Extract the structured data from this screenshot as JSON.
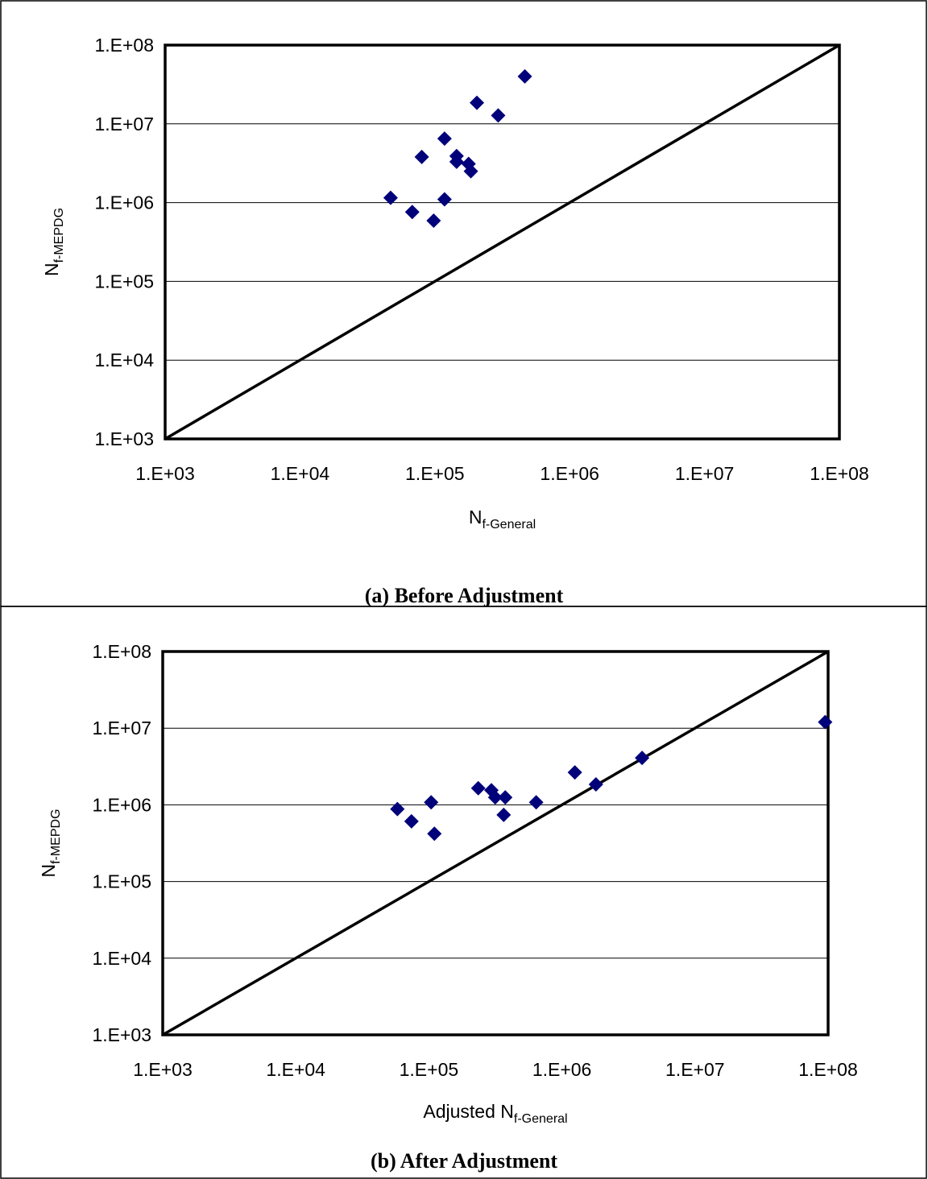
{
  "panels": [
    {
      "caption": "(a) Before Adjustment",
      "xlabel_pre": "",
      "xlabel_main": "N",
      "xlabel_sub": "f-General",
      "ylabel_main": "N",
      "ylabel_sub": "f-MEPDG"
    },
    {
      "caption": "(b) After Adjustment",
      "xlabel_pre": "Adjusted ",
      "xlabel_main": "N",
      "xlabel_sub": "f-General",
      "ylabel_main": "N",
      "ylabel_sub": "f-MEPDG"
    }
  ],
  "chart_data": [
    {
      "type": "scatter",
      "title": "",
      "caption": "(a) Before Adjustment",
      "xlabel": "Nf-General",
      "ylabel": "Nf-MEPDG",
      "xscale": "log",
      "yscale": "log",
      "xlim": [
        1000,
        100000000
      ],
      "ylim": [
        1000,
        100000000
      ],
      "xticks": [
        "1.E+03",
        "1.E+04",
        "1.E+05",
        "1.E+06",
        "1.E+07",
        "1.E+08"
      ],
      "yticks": [
        "1.E+03",
        "1.E+04",
        "1.E+05",
        "1.E+06",
        "1.E+07",
        "1.E+08"
      ],
      "grid": "horizontal",
      "reference_line": "equality line y = x",
      "color": "#00007a",
      "points": [
        {
          "x": 47000,
          "y": 1150000
        },
        {
          "x": 68000,
          "y": 760000
        },
        {
          "x": 80000,
          "y": 3800000
        },
        {
          "x": 98000,
          "y": 590000
        },
        {
          "x": 118000,
          "y": 1100000
        },
        {
          "x": 118000,
          "y": 6500000
        },
        {
          "x": 145000,
          "y": 3900000
        },
        {
          "x": 145000,
          "y": 3300000
        },
        {
          "x": 178000,
          "y": 3100000
        },
        {
          "x": 185000,
          "y": 2500000
        },
        {
          "x": 205000,
          "y": 18500000
        },
        {
          "x": 295000,
          "y": 12800000
        },
        {
          "x": 465000,
          "y": 40000000
        }
      ]
    },
    {
      "type": "scatter",
      "title": "",
      "caption": "(b) After Adjustment",
      "xlabel": "Adjusted Nf-General",
      "ylabel": "Nf-MEPDG",
      "xscale": "log",
      "yscale": "log",
      "xlim": [
        1000,
        100000000
      ],
      "ylim": [
        1000,
        100000000
      ],
      "xticks": [
        "1.E+03",
        "1.E+04",
        "1.E+05",
        "1.E+06",
        "1.E+07",
        "1.E+08"
      ],
      "yticks": [
        "1.E+03",
        "1.E+04",
        "1.E+05",
        "1.E+06",
        "1.E+07",
        "1.E+08"
      ],
      "grid": "horizontal",
      "reference_line": "equality line y = x",
      "color": "#00007a",
      "points": [
        {
          "x": 58000,
          "y": 880000
        },
        {
          "x": 74000,
          "y": 610000
        },
        {
          "x": 104000,
          "y": 1080000
        },
        {
          "x": 110000,
          "y": 420000
        },
        {
          "x": 235000,
          "y": 1650000
        },
        {
          "x": 295000,
          "y": 1550000
        },
        {
          "x": 315000,
          "y": 1250000
        },
        {
          "x": 365000,
          "y": 740000
        },
        {
          "x": 375000,
          "y": 1250000
        },
        {
          "x": 640000,
          "y": 1080000
        },
        {
          "x": 1250000,
          "y": 2650000
        },
        {
          "x": 1800000,
          "y": 1850000
        },
        {
          "x": 4000000,
          "y": 4100000
        },
        {
          "x": 95000000,
          "y": 12000000
        }
      ]
    }
  ]
}
